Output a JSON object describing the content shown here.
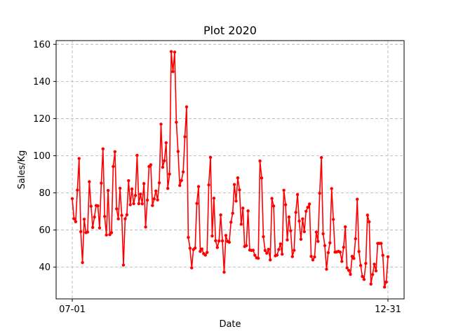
{
  "chart_data": {
    "type": "line",
    "title": "Plot 2020",
    "xlabel": "Date",
    "ylabel": "Sales/Kg",
    "x_tick_labels": [
      "07-01",
      "12-31"
    ],
    "ylim": [
      22.9,
      162
    ],
    "yticks": [
      40,
      60,
      80,
      100,
      120,
      140,
      160
    ],
    "grid": true,
    "color": "#ff0000",
    "series": [
      {
        "values": [
          76.9,
          66.1,
          64.5,
          81.5,
          98.5,
          59.1,
          42.5,
          65.8,
          58.6,
          58.9,
          86.0,
          72.8,
          61.4,
          67.0,
          73.2,
          73.0,
          61.1,
          85.2,
          103.7,
          67.3,
          57.3,
          81.3,
          57.5,
          58.6,
          94.2,
          102.2,
          71.4,
          66.0,
          82.5,
          67.9,
          41.1,
          66.0,
          68.2,
          86.6,
          73.6,
          82.1,
          74.2,
          78.6,
          100.2,
          74.2,
          79.3,
          74.1,
          85.0,
          61.6,
          76.1,
          94.2,
          95.1,
          73.2,
          76.8,
          81.0,
          76.2,
          85.4,
          117.0,
          93.8,
          97.3,
          107.0,
          82.4,
          90.1,
          156.1,
          145.3,
          155.8,
          118.0,
          102.3,
          84.0,
          86.7,
          91.3,
          110.2,
          126.3,
          56.0,
          50.2,
          39.6,
          49.5,
          50.3,
          74.3,
          83.4,
          48.5,
          49.8,
          47.3,
          46.5,
          47.9,
          84.3,
          99.1,
          56.8,
          77.1,
          54.2,
          50.6,
          54.1,
          68.1,
          54.1,
          37.3,
          57.1,
          53.9,
          53.4,
          64.2,
          69.0,
          84.5,
          75.6,
          88.1,
          81.6,
          63.1,
          71.8,
          51.1,
          51.6,
          70.3,
          49.2,
          49.0,
          49.1,
          46.4,
          45.0,
          44.8,
          97.2,
          88.0,
          56.4,
          49.0,
          47.5,
          49.6,
          43.9,
          77.0,
          72.9,
          46.1,
          46.5,
          49.5,
          52.5,
          47.0,
          81.4,
          73.6,
          54.7,
          67.0,
          59.6,
          45.7,
          49.1,
          69.5,
          79.1,
          64.8,
          55.0,
          66.0,
          59.1,
          70.1,
          72.2,
          74.0,
          45.8,
          43.9,
          45.5,
          58.9,
          53.9,
          79.8,
          99.0,
          58.0,
          51.6,
          38.9,
          47.8,
          53.1,
          82.3,
          65.7,
          48.1,
          48.2,
          48.5,
          48.1,
          43.1,
          50.7,
          61.7,
          39.6,
          38.3,
          36.1,
          45.8,
          44.7,
          55.3,
          76.6,
          48.4,
          40.9,
          35.0,
          33.4,
          42.0,
          68.0,
          64.4,
          30.9,
          36.0,
          41.6,
          38.0,
          52.8,
          52.8,
          52.8,
          46.4,
          29.3,
          32.0,
          45.6
        ]
      }
    ]
  }
}
